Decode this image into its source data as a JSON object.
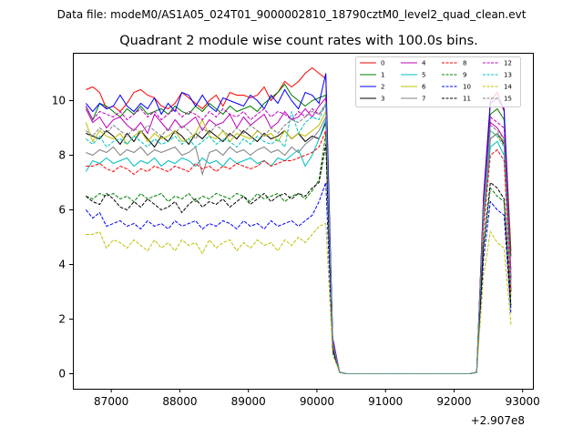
{
  "header": {
    "data_file": "Data file: modeM0/AS1A05_024T01_9000002810_18790cztM0_level2_quad_clean.evt"
  },
  "chart_data": {
    "type": "line",
    "title": "Quadrant 2 module wise count rates with 100.0s bins.",
    "xlabel": "",
    "ylabel": "",
    "x_offset_label": "+2.907e8",
    "xlim": [
      86440,
      93150
    ],
    "ylim": [
      -0.55,
      11.75
    ],
    "x_ticks": [
      87000,
      88000,
      89000,
      90000,
      91000,
      92000,
      93000
    ],
    "x_tick_labels": [
      "87000",
      "88000",
      "89000",
      "90000",
      "91000",
      "92000",
      "93000"
    ],
    "y_ticks": [
      0,
      2,
      4,
      6,
      8,
      10
    ],
    "y_tick_labels": [
      "0",
      "2",
      "4",
      "6",
      "8",
      "10"
    ],
    "grid": false,
    "legend_position": "top-right",
    "legend_columns": 4,
    "x": [
      86630,
      86730,
      86830,
      86930,
      87030,
      87130,
      87230,
      87330,
      87430,
      87530,
      87630,
      87730,
      87830,
      87930,
      88030,
      88130,
      88230,
      88330,
      88430,
      88530,
      88630,
      88730,
      88830,
      88930,
      89030,
      89130,
      89230,
      89330,
      89430,
      89530,
      89630,
      89730,
      89830,
      89930,
      90030,
      90130,
      90230,
      90330,
      90430,
      90530,
      90630,
      90730,
      90830,
      90930,
      91030,
      91130,
      91230,
      91330,
      91430,
      91530,
      91630,
      91730,
      91830,
      91930,
      92030,
      92130,
      92230,
      92330,
      92430,
      92530,
      92630,
      92730,
      92830
    ],
    "series": [
      {
        "name": "0",
        "color": "#ff0000",
        "dash": "solid",
        "values": [
          10.4,
          10.5,
          10.3,
          9.7,
          9.8,
          9.6,
          9.9,
          10.3,
          10.4,
          10.2,
          10.1,
          9.8,
          9.7,
          9.9,
          10.3,
          10.1,
          9.9,
          9.7,
          10.0,
          10.2,
          9.8,
          10.3,
          10.2,
          10.2,
          10.1,
          10.2,
          10.5,
          10.0,
          10.3,
          10.7,
          10.5,
          10.7,
          11.0,
          11.2,
          11.0,
          10.8,
          1.3,
          0.05,
          0,
          0,
          0,
          0,
          0,
          0,
          0,
          0,
          0,
          0,
          0,
          0,
          0,
          0,
          0,
          0,
          0,
          0,
          0,
          0.05,
          6.5,
          10.0,
          10.3,
          9.6,
          4.5
        ]
      },
      {
        "name": "1",
        "color": "#008000",
        "dash": "solid",
        "values": [
          9.8,
          9.3,
          9.9,
          9.8,
          9.6,
          9.4,
          9.7,
          9.5,
          9.8,
          9.5,
          9.6,
          9.7,
          9.5,
          9.8,
          9.6,
          9.5,
          9.8,
          9.6,
          9.9,
          9.7,
          9.5,
          9.8,
          9.6,
          9.7,
          9.8,
          9.6,
          9.9,
          10.1,
          10.3,
          10.6,
          10.2,
          10.0,
          9.8,
          10.0,
          10.1,
          10.2,
          1.2,
          0.05,
          0,
          0,
          0,
          0,
          0,
          0,
          0,
          0,
          0,
          0,
          0,
          0,
          0,
          0,
          0,
          0,
          0,
          0,
          0,
          0.05,
          6.3,
          9.5,
          9.7,
          9.3,
          4.3
        ]
      },
      {
        "name": "2",
        "color": "#0000ff",
        "dash": "solid",
        "values": [
          9.9,
          9.6,
          9.9,
          9.7,
          9.8,
          10.2,
          9.8,
          9.6,
          9.9,
          9.7,
          10.1,
          9.5,
          9.9,
          9.6,
          10.3,
          10.2,
          9.8,
          10.2,
          9.8,
          9.6,
          10.1,
          10.0,
          9.9,
          9.8,
          10.2,
          10.0,
          9.7,
          10.2,
          9.9,
          10.4,
          10.0,
          9.7,
          10.3,
          10.2,
          9.9,
          11.0,
          1.3,
          0.05,
          0,
          0,
          0,
          0,
          0,
          0,
          0,
          0,
          0,
          0,
          0,
          0,
          0,
          0,
          0,
          0,
          0,
          0,
          0,
          0.05,
          6.4,
          9.9,
          10.1,
          9.7,
          3.5
        ]
      },
      {
        "name": "3",
        "color": "#000000",
        "dash": "solid",
        "values": [
          8.8,
          8.7,
          8.6,
          8.9,
          8.7,
          8.4,
          8.8,
          8.5,
          8.9,
          8.6,
          8.3,
          8.7,
          8.5,
          8.9,
          8.7,
          8.4,
          8.8,
          8.6,
          8.9,
          8.7,
          8.5,
          8.8,
          8.6,
          8.9,
          8.7,
          8.5,
          8.8,
          8.6,
          8.7,
          8.9,
          8.6,
          8.8,
          8.5,
          8.7,
          8.6,
          9.2,
          1.1,
          0.05,
          0,
          0,
          0,
          0,
          0,
          0,
          0,
          0,
          0,
          0,
          0,
          0,
          0,
          0,
          0,
          0,
          0,
          0,
          0,
          0.05,
          5.8,
          8.6,
          8.8,
          8.4,
          3.0
        ]
      },
      {
        "name": "4",
        "color": "#bf00bf",
        "dash": "solid",
        "values": [
          9.7,
          9.2,
          9.4,
          9.0,
          9.3,
          9.4,
          9.1,
          8.9,
          9.2,
          8.8,
          9.5,
          9.2,
          8.9,
          9.3,
          9.0,
          9.2,
          9.4,
          8.9,
          9.3,
          9.1,
          9.2,
          9.5,
          9.0,
          9.4,
          9.1,
          9.3,
          9.5,
          9.0,
          9.2,
          9.6,
          9.3,
          9.4,
          9.7,
          9.4,
          9.8,
          10.1,
          1.2,
          0.05,
          0,
          0,
          0,
          0,
          0,
          0,
          0,
          0,
          0,
          0,
          0,
          0,
          0,
          0,
          0,
          0,
          0,
          0,
          0,
          0.05,
          6.1,
          9.2,
          9.0,
          8.6,
          3.8
        ]
      },
      {
        "name": "5",
        "color": "#00bfbf",
        "dash": "solid",
        "values": [
          7.4,
          7.8,
          7.7,
          7.9,
          7.7,
          7.8,
          7.9,
          7.6,
          7.8,
          7.7,
          7.9,
          7.6,
          7.8,
          7.7,
          7.9,
          7.8,
          7.6,
          7.9,
          7.7,
          7.8,
          7.6,
          7.9,
          7.7,
          7.8,
          7.9,
          7.7,
          7.8,
          7.6,
          7.9,
          7.8,
          8.0,
          8.2,
          7.6,
          8.0,
          8.6,
          9.3,
          1.0,
          0.05,
          0,
          0,
          0,
          0,
          0,
          0,
          0,
          0,
          0,
          0,
          0,
          0,
          0,
          0,
          0,
          0,
          0,
          0,
          0,
          0.05,
          5.5,
          8.3,
          8.5,
          8.0,
          3.0
        ]
      },
      {
        "name": "6",
        "color": "#bfbf00",
        "dash": "solid",
        "values": [
          9.2,
          8.5,
          8.9,
          8.7,
          8.6,
          8.8,
          8.4,
          8.7,
          8.9,
          8.5,
          8.8,
          8.6,
          8.7,
          8.9,
          8.5,
          8.6,
          8.8,
          9.3,
          8.7,
          8.6,
          8.9,
          8.5,
          8.8,
          8.7,
          8.6,
          8.9,
          8.7,
          8.8,
          8.5,
          8.9,
          8.6,
          8.8,
          8.7,
          8.9,
          9.1,
          9.6,
          1.1,
          0.05,
          0,
          0,
          0,
          0,
          0,
          0,
          0,
          0,
          0,
          0,
          0,
          0,
          0,
          0,
          0,
          0,
          0,
          0,
          0,
          0.05,
          5.9,
          8.9,
          8.7,
          8.5,
          2.8
        ]
      },
      {
        "name": "7",
        "color": "#808080",
        "dash": "solid",
        "values": [
          8.1,
          8.0,
          8.2,
          8.1,
          8.3,
          8.0,
          8.2,
          8.1,
          8.3,
          8.0,
          8.2,
          8.1,
          8.2,
          8.3,
          8.0,
          8.1,
          8.3,
          7.3,
          8.1,
          8.2,
          8.0,
          8.3,
          8.1,
          8.2,
          8.0,
          8.2,
          8.3,
          8.1,
          8.2,
          8.0,
          8.3,
          8.1,
          8.4,
          8.6,
          8.9,
          9.4,
          1.0,
          0.05,
          0,
          0,
          0,
          0,
          0,
          0,
          0,
          0,
          0,
          0,
          0,
          0,
          0,
          0,
          0,
          0,
          0,
          0,
          0,
          0.05,
          5.7,
          8.6,
          8.8,
          8.5,
          3.2
        ]
      },
      {
        "name": "8",
        "color": "#ff0000",
        "dash": "dashed",
        "values": [
          7.6,
          7.6,
          7.7,
          7.5,
          7.4,
          7.6,
          7.5,
          7.3,
          7.5,
          7.4,
          7.6,
          7.5,
          7.4,
          7.6,
          7.5,
          7.4,
          7.7,
          7.5,
          7.6,
          7.4,
          7.6,
          7.5,
          7.7,
          7.6,
          7.5,
          7.6,
          7.8,
          7.6,
          7.7,
          7.8,
          7.8,
          7.9,
          8.0,
          8.1,
          8.3,
          8.9,
          1.0,
          0.05,
          0,
          0,
          0,
          0,
          0,
          0,
          0,
          0,
          0,
          0,
          0,
          0,
          0,
          0,
          0,
          0,
          0,
          0,
          0,
          0.05,
          5.3,
          8.0,
          8.2,
          7.8,
          3.0
        ]
      },
      {
        "name": "9",
        "color": "#008000",
        "dash": "dashed",
        "values": [
          6.5,
          6.4,
          6.6,
          6.5,
          6.6,
          6.4,
          6.5,
          6.3,
          6.6,
          6.4,
          6.5,
          6.6,
          6.3,
          6.5,
          6.4,
          6.6,
          6.3,
          6.5,
          6.4,
          6.6,
          6.5,
          6.4,
          6.6,
          6.5,
          6.3,
          6.6,
          6.4,
          6.5,
          6.6,
          6.3,
          6.5,
          6.6,
          6.4,
          6.7,
          7.1,
          8.8,
          0.9,
          0.05,
          0,
          0,
          0,
          0,
          0,
          0,
          0,
          0,
          0,
          0,
          0,
          0,
          0,
          0,
          0,
          0,
          0,
          0,
          0,
          0.05,
          4.6,
          6.8,
          6.5,
          6.3,
          2.4
        ]
      },
      {
        "name": "10",
        "color": "#0000ff",
        "dash": "dashed",
        "values": [
          6.0,
          5.7,
          5.9,
          5.4,
          5.5,
          5.6,
          5.4,
          5.5,
          5.3,
          5.6,
          5.4,
          5.5,
          5.3,
          5.6,
          5.4,
          5.5,
          5.6,
          5.3,
          5.5,
          5.4,
          5.6,
          5.5,
          5.3,
          5.6,
          5.4,
          5.5,
          5.3,
          5.6,
          5.4,
          5.5,
          5.6,
          5.4,
          5.6,
          5.8,
          6.3,
          7.0,
          0.8,
          0.05,
          0,
          0,
          0,
          0,
          0,
          0,
          0,
          0,
          0,
          0,
          0,
          0,
          0,
          0,
          0,
          0,
          0,
          0,
          0,
          0.05,
          4.2,
          6.3,
          6.0,
          5.8,
          2.2
        ]
      },
      {
        "name": "11",
        "color": "#000000",
        "dash": "dashed",
        "values": [
          6.5,
          6.3,
          6.2,
          6.6,
          6.4,
          6.1,
          6.0,
          6.3,
          6.1,
          6.4,
          6.2,
          6.0,
          6.1,
          6.3,
          5.9,
          6.2,
          6.4,
          6.1,
          6.3,
          6.2,
          6.4,
          6.1,
          6.3,
          6.5,
          6.2,
          6.4,
          6.6,
          6.3,
          6.5,
          6.6,
          6.4,
          6.6,
          6.5,
          6.8,
          7.0,
          8.4,
          0.9,
          0.05,
          0,
          0,
          0,
          0,
          0,
          0,
          0,
          0,
          0,
          0,
          0,
          0,
          0,
          0,
          0,
          0,
          0,
          0,
          0,
          0.05,
          4.7,
          7.0,
          6.8,
          6.4,
          2.5
        ]
      },
      {
        "name": "12",
        "color": "#bf00bf",
        "dash": "dashed",
        "values": [
          9.8,
          9.3,
          9.6,
          9.5,
          9.4,
          9.6,
          9.3,
          9.5,
          9.7,
          9.4,
          9.6,
          9.3,
          9.5,
          9.7,
          9.4,
          9.6,
          9.5,
          9.3,
          9.6,
          9.4,
          9.7,
          9.5,
          9.4,
          9.6,
          9.3,
          9.5,
          9.7,
          9.4,
          9.6,
          9.5,
          9.3,
          9.6,
          9.4,
          9.7,
          9.5,
          9.8,
          1.2,
          0.05,
          0,
          0,
          0,
          0,
          0,
          0,
          0,
          0,
          0,
          0,
          0,
          0,
          0,
          0,
          0,
          0,
          0,
          0,
          0,
          0.05,
          6.2,
          9.4,
          9.2,
          9.0,
          3.5
        ]
      },
      {
        "name": "13",
        "color": "#00bfbf",
        "dash": "dashed",
        "values": [
          8.6,
          8.4,
          8.7,
          8.3,
          8.5,
          8.6,
          8.4,
          8.7,
          8.5,
          8.3,
          8.6,
          8.4,
          8.5,
          8.7,
          8.4,
          8.6,
          8.3,
          8.5,
          8.7,
          8.4,
          8.6,
          8.5,
          8.3,
          8.6,
          8.4,
          8.7,
          8.5,
          8.4,
          8.6,
          8.3,
          9.6,
          8.8,
          9.2,
          9.4,
          9.3,
          9.9,
          1.1,
          0.05,
          0,
          0,
          0,
          0,
          0,
          0,
          0,
          0,
          0,
          0,
          0,
          0,
          0,
          0,
          0,
          0,
          0,
          0,
          0,
          0.05,
          5.9,
          8.9,
          8.7,
          8.3,
          3.3
        ]
      },
      {
        "name": "14",
        "color": "#bfbf00",
        "dash": "dashed",
        "values": [
          5.1,
          5.1,
          5.2,
          4.6,
          4.9,
          4.8,
          4.6,
          4.9,
          4.7,
          4.5,
          4.9,
          4.6,
          4.8,
          4.5,
          4.9,
          4.7,
          4.8,
          4.4,
          4.9,
          4.6,
          4.8,
          4.9,
          4.5,
          4.8,
          4.6,
          4.9,
          4.7,
          4.8,
          4.5,
          4.9,
          4.7,
          5.0,
          4.8,
          5.1,
          5.4,
          5.5,
          0.7,
          0.05,
          0,
          0,
          0,
          0,
          0,
          0,
          0,
          0,
          0,
          0,
          0,
          0,
          0,
          0,
          0,
          0,
          0,
          0,
          0,
          0.05,
          3.6,
          5.2,
          4.8,
          4.6,
          1.8
        ]
      },
      {
        "name": "15",
        "color": "#808080",
        "dash": "dashed",
        "values": [
          8.9,
          8.7,
          9.0,
          8.8,
          9.1,
          8.9,
          8.7,
          9.0,
          8.8,
          9.1,
          8.9,
          8.7,
          9.0,
          8.8,
          9.1,
          8.9,
          8.6,
          9.0,
          8.8,
          9.1,
          8.9,
          8.7,
          9.0,
          8.8,
          9.1,
          8.9,
          8.7,
          9.0,
          8.8,
          9.1,
          9.3,
          9.2,
          9.4,
          9.6,
          9.5,
          9.9,
          1.1,
          0.05,
          0,
          0,
          0,
          0,
          0,
          0,
          0,
          0,
          0,
          0,
          0,
          0,
          0,
          0,
          0,
          0,
          0,
          0,
          0,
          0.05,
          6.0,
          9.1,
          8.9,
          8.6,
          3.4
        ]
      }
    ]
  }
}
